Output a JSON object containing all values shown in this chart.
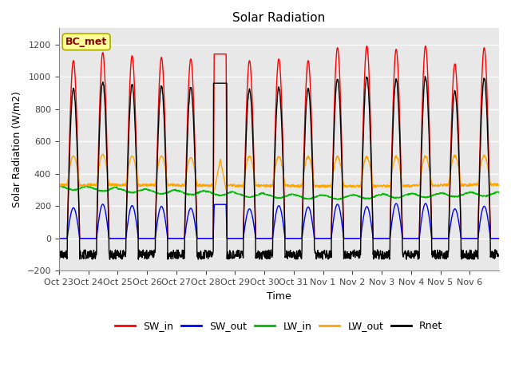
{
  "title": "Solar Radiation",
  "ylabel": "Solar Radiation (W/m2)",
  "xlabel": "Time",
  "ylim": [
    -200,
    1300
  ],
  "yticks": [
    -200,
    0,
    200,
    400,
    600,
    800,
    1000,
    1200
  ],
  "x_labels": [
    "Oct 23",
    "Oct 24",
    "Oct 25",
    "Oct 26",
    "Oct 27",
    "Oct 28",
    "Oct 29",
    "Oct 30",
    "Oct 31",
    "Nov 1",
    "Nov 2",
    "Nov 3",
    "Nov 4",
    "Nov 5",
    "Nov 6"
  ],
  "station_label": "BC_met",
  "colors": {
    "SW_in": "#FF0000",
    "SW_out": "#0000FF",
    "LW_in": "#00BB00",
    "LW_out": "#FFA500",
    "Rnet": "#000000"
  },
  "background_color": "#E0E0E0",
  "plot_bg": "#E8E8E8"
}
